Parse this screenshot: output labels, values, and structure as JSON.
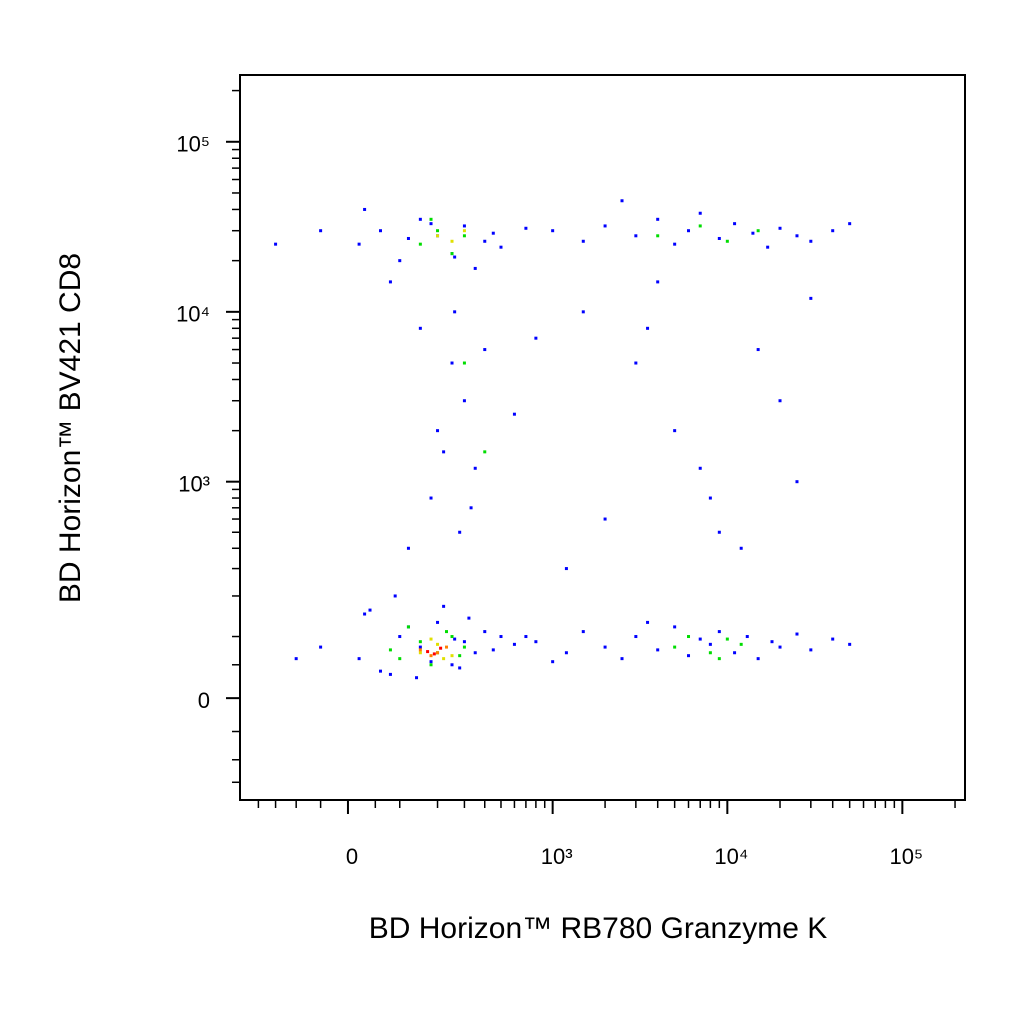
{
  "chart_data": {
    "type": "scatter",
    "xlabel": "BD Horizon™ RB780 Granzyme K",
    "ylabel": "BD Horizon™ BV421 CD8",
    "xscale": "biexponential",
    "xcofactor": 136,
    "yscale": "biexponential",
    "ycofactor": 107,
    "xlim": [
      -265,
      228000
    ],
    "ylim": [
      -199,
      247000
    ],
    "xticks": [
      0,
      {
        "value": 1000,
        "label": "10³"
      },
      {
        "value": 10000,
        "label": "10⁴"
      },
      {
        "value": 100000,
        "label": "10⁵"
      }
    ],
    "yticks": [
      0,
      {
        "value": 1000,
        "label": "10³"
      },
      {
        "value": 10000,
        "label": "10⁴"
      },
      {
        "value": 100000,
        "label": "10⁵"
      }
    ],
    "xminor": [
      -200,
      -150,
      -100,
      -50,
      50,
      100,
      200,
      300,
      400,
      500,
      600,
      700,
      800,
      900,
      2000,
      3000,
      4000,
      5000,
      6000,
      7000,
      8000,
      9000,
      20000,
      30000,
      40000,
      50000,
      60000,
      70000,
      80000,
      90000,
      200000
    ],
    "yminor": [
      -150,
      -100,
      -50,
      50,
      100,
      200,
      300,
      400,
      500,
      600,
      700,
      800,
      900,
      2000,
      3000,
      4000,
      5000,
      6000,
      7000,
      8000,
      9000,
      20000,
      30000,
      40000,
      50000,
      60000,
      70000,
      80000,
      90000,
      200000
    ],
    "series": [
      {
        "color": "#0000ff",
        "x": [
          20,
          60,
          100,
          150,
          200,
          250,
          300,
          350,
          400,
          -50,
          -100,
          30,
          80,
          120,
          180,
          260,
          320,
          450,
          500,
          40,
          90,
          140,
          220,
          280,
          600,
          800,
          1200,
          1500,
          2000,
          2500,
          3000,
          4000,
          5000,
          6000,
          7000,
          8000,
          9000,
          11000,
          13000,
          15000,
          18000,
          20000,
          25000,
          30000,
          40000,
          50000,
          3500,
          1000,
          700,
          20,
          60,
          100,
          150,
          200,
          250,
          300,
          350,
          400,
          -50,
          -150,
          30,
          80,
          120,
          180,
          260,
          450,
          500,
          700,
          1000,
          1500,
          2000,
          3000,
          4000,
          5000,
          6000,
          7000,
          9000,
          11000,
          14000,
          17000,
          20000,
          25000,
          30000,
          40000,
          50000,
          2500,
          150,
          250,
          300,
          200,
          350,
          180,
          280,
          120,
          400,
          220,
          330,
          260,
          1500,
          3000,
          5000,
          8000,
          12000,
          20000,
          2000,
          4000,
          7000,
          15000,
          25000,
          1200,
          3500,
          9000,
          30000,
          600,
          800
        ],
        "values": [
          60,
          40,
          100,
          80,
          130,
          50,
          90,
          70,
          110,
          80,
          60,
          150,
          35,
          120,
          55,
          95,
          140,
          75,
          100,
          160,
          200,
          30,
          170,
          45,
          85,
          90,
          70,
          110,
          80,
          60,
          100,
          75,
          120,
          65,
          95,
          85,
          110,
          70,
          100,
          60,
          90,
          80,
          105,
          75,
          95,
          85,
          130,
          55,
          100,
          25000,
          30000,
          20000,
          35000,
          28000,
          22000,
          32000,
          18000,
          26000,
          30000,
          25000,
          40000,
          15000,
          27000,
          33000,
          21000,
          29000,
          24000,
          31000,
          30000,
          26000,
          32000,
          28000,
          35000,
          25000,
          30000,
          38000,
          27000,
          33000,
          29000,
          24000,
          31000,
          28000,
          26000,
          30000,
          33000,
          45000,
          8000,
          5000,
          3000,
          2000,
          1200,
          800,
          500,
          400,
          6000,
          1500,
          700,
          10000,
          10000,
          5000,
          2000,
          800,
          400,
          3000,
          600,
          15000,
          1200,
          6000,
          1000,
          300,
          8000,
          500,
          12000,
          2500,
          7000
        ]
      },
      {
        "color": "#00dd00",
        "x": [
          100,
          150,
          200,
          250,
          300,
          120,
          180,
          230,
          280,
          80,
          5000,
          8000,
          10000,
          12000,
          6000,
          9000,
          150,
          200,
          250,
          300,
          180,
          4000,
          7000,
          10000,
          15000,
          300,
          400
        ],
        "values": [
          60,
          90,
          70,
          100,
          80,
          120,
          50,
          110,
          65,
          75,
          80,
          70,
          95,
          85,
          100,
          60,
          25000,
          30000,
          22000,
          28000,
          35000,
          28000,
          32000,
          26000,
          30000,
          5000,
          1500
        ]
      },
      {
        "color": "#e0e000",
        "x": [
          150,
          200,
          250,
          180,
          220,
          200,
          250,
          300
        ],
        "values": [
          70,
          85,
          65,
          95,
          60,
          28000,
          26000,
          30000
        ]
      },
      {
        "color": "#ff8000",
        "x": [
          150,
          200,
          230,
          180
        ],
        "values": [
          75,
          70,
          80,
          65
        ]
      },
      {
        "color": "#ff0000",
        "x": [
          170,
          210,
          190
        ],
        "values": [
          72,
          78,
          68
        ]
      }
    ]
  }
}
